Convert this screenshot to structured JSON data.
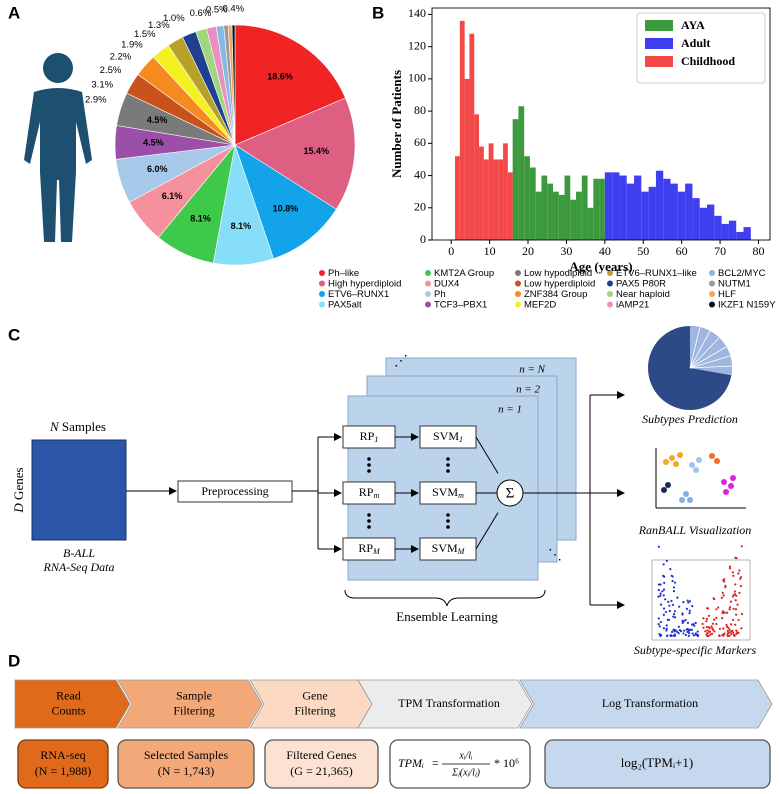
{
  "panel_labels": [
    "A",
    "B",
    "C",
    "D"
  ],
  "chart_data": [
    {
      "type": "pie",
      "categories": [
        "Ph–like",
        "High hyperdiploid",
        "ETV6–RUNX1",
        "PAX5alt",
        "KMT2A Group",
        "DUX4",
        "Ph",
        "TCF3–PBX1",
        "Low hypodiploid",
        "Low hyperdiploid",
        "ZNF384 Group",
        "MEF2D",
        "ETV6–RUNX1–like",
        "PAX5 P80R",
        "Near haploid",
        "iAMP21",
        "BCL2/MYC",
        "NUTM1",
        "HLF",
        "IKZF1 N159Y"
      ],
      "values": [
        18.6,
        15.4,
        10.8,
        8.1,
        8.1,
        6.1,
        6.0,
        4.5,
        4.5,
        2.9,
        3.1,
        2.5,
        2.2,
        1.9,
        1.5,
        1.3,
        1.0,
        0.6,
        0.5,
        0.4
      ],
      "value_labels": [
        "18.6%",
        "15.4%",
        "10.8%",
        "8.1%",
        "8.1%",
        "6.1%",
        "6.0%",
        "4.5%",
        "4.5%",
        "2.9%",
        "3.1%",
        "2.5%",
        "2.2%",
        "1.9%",
        "1.5%",
        "1.3%",
        "1.0%",
        "0.6%",
        "0.5%",
        "0.4%"
      ],
      "colors": [
        "#f02424",
        "#de5f82",
        "#12a3e8",
        "#86def8",
        "#3ec94a",
        "#f4919c",
        "#a8c8ea",
        "#9b4fa8",
        "#7a7a7a",
        "#c8521b",
        "#f58a1f",
        "#f5f020",
        "#b8a12a",
        "#1f3f8f",
        "#9fd67e",
        "#ea8fc4",
        "#86b8e4",
        "#9a9a9a",
        "#f4a460",
        "#111111"
      ],
      "legend": "below"
    },
    {
      "type": "histogram",
      "xlabel": "Age (years)",
      "ylabel": "Number of Patients",
      "xlim": [
        -5,
        83
      ],
      "ylim": [
        0,
        144
      ],
      "xticks": [
        0,
        10,
        20,
        30,
        40,
        50,
        60,
        70,
        80
      ],
      "yticks": [
        0,
        20,
        40,
        60,
        80,
        100,
        120,
        140
      ],
      "legend": "upper right",
      "series": [
        {
          "name": "AYA",
          "color": "#3c9a3c",
          "bins": [
            16,
            17.5,
            19,
            20.5,
            22,
            23.5,
            25,
            26.5,
            28,
            29.5,
            31,
            32.5,
            34,
            35.5,
            37,
            38.5,
            40
          ],
          "values": [
            75,
            83,
            52,
            45,
            30,
            40,
            35,
            30,
            28,
            40,
            25,
            30,
            40,
            20,
            38,
            38
          ]
        },
        {
          "name": "Adult",
          "color": "#3f3ff0",
          "bins": [
            40,
            41.9,
            43.8,
            45.7,
            47.6,
            49.5,
            51.4,
            53.3,
            55.2,
            57.1,
            59,
            60.9,
            62.8,
            64.7,
            66.6,
            68.5,
            70.4,
            72.3,
            74.2,
            76.1,
            78
          ],
          "values": [
            42,
            42,
            40,
            35,
            40,
            30,
            33,
            43,
            38,
            35,
            30,
            35,
            26,
            20,
            22,
            15,
            10,
            12,
            5,
            8
          ]
        },
        {
          "name": "Childhood",
          "color": "#f24848",
          "bins": [
            1,
            2.25,
            3.5,
            4.75,
            6,
            7.25,
            8.5,
            9.75,
            11,
            12.25,
            13.5,
            14.75,
            16
          ],
          "values": [
            52,
            136,
            100,
            128,
            78,
            58,
            50,
            60,
            50,
            50,
            60,
            42
          ]
        }
      ]
    }
  ],
  "diagram": {
    "samples_var": "N",
    "samples_text": "Samples",
    "genes_var": "D",
    "genes_text": "Genes",
    "data_label": [
      "B-ALL",
      "RNA-Seq Data"
    ],
    "preprocessing": "Preprocessing",
    "rows": [
      {
        "rp": "RP",
        "rp_sub": "1",
        "svm": "SVM",
        "svm_sub": "1"
      },
      {
        "rp": "RP",
        "rp_sub": "m",
        "svm": "SVM",
        "svm_sub": "m"
      },
      {
        "rp": "RP",
        "rp_sub": "M",
        "svm": "SVM",
        "svm_sub": "M"
      }
    ],
    "sum": "Σ",
    "layers": [
      "n = 1",
      "n = 2",
      "n = N"
    ],
    "ensemble": "Ensemble Learning",
    "outputs": [
      "Subtypes Prediction",
      "RanBALL Visualization",
      "Subtype-specific Markers"
    ]
  },
  "pipeline": {
    "steps": [
      [
        "Read",
        "Counts"
      ],
      [
        "Sample",
        "Filtering"
      ],
      [
        "Gene",
        "Filtering"
      ],
      [
        "TPM Transformation"
      ],
      [
        "Log Transformation"
      ]
    ],
    "boxes": [
      [
        "RNA-seq",
        "(N = 1,988)"
      ],
      [
        "Selected Samples",
        "(N = 1,743)"
      ],
      [
        "Filtered Genes",
        "(G = 21,365)"
      ]
    ],
    "tpm": {
      "lhs": "TPMᵢ",
      "eq": "=",
      "num": "xᵢ/lᵢ",
      "den": "Σⱼ(xⱼ/lⱼ)",
      "tail": "* 10⁶"
    },
    "log": "log₂(TPMᵢ+1)"
  }
}
